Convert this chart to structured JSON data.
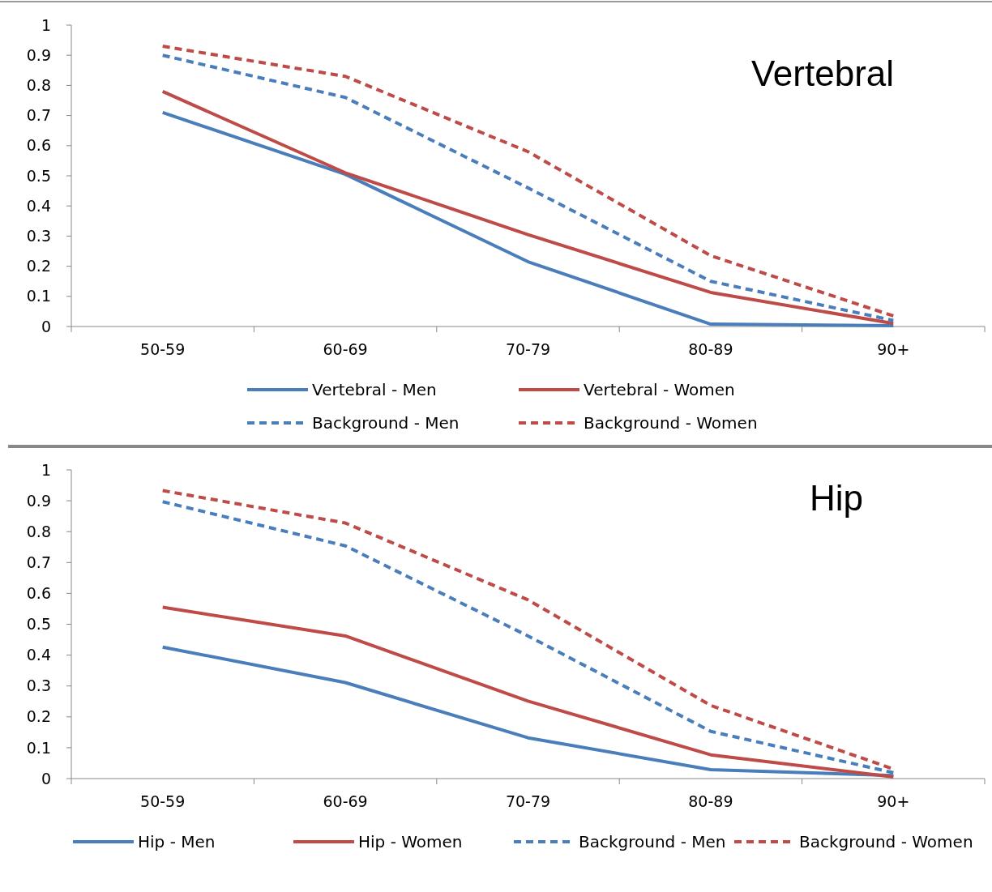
{
  "chart_data": [
    {
      "type": "line",
      "title": "Vertebral",
      "categories": [
        "50-59",
        "60-69",
        "70-79",
        "80-89",
        "90+"
      ],
      "ylim": [
        0,
        1
      ],
      "yticks": [
        0,
        0.1,
        0.2,
        0.3,
        0.4,
        0.5,
        0.6,
        0.7,
        0.8,
        0.9,
        1
      ],
      "legend": "bottom",
      "grid": false,
      "marker": "none",
      "series": [
        {
          "name": "Vertebral - Men",
          "color": "#4a7ebb",
          "line_style": "solid",
          "values": [
            0.71,
            0.505,
            0.215,
            0.008,
            0.003
          ]
        },
        {
          "name": "Vertebral - Women",
          "color": "#be4b48",
          "line_style": "solid",
          "values": [
            0.78,
            0.51,
            0.305,
            0.113,
            0.01
          ]
        },
        {
          "name": "Background - Men",
          "color": "#4a7ebb",
          "line_style": "dashed",
          "values": [
            0.9,
            0.76,
            0.46,
            0.15,
            0.02
          ]
        },
        {
          "name": "Background - Women",
          "color": "#be4b48",
          "line_style": "dashed",
          "values": [
            0.93,
            0.83,
            0.58,
            0.235,
            0.035
          ]
        }
      ]
    },
    {
      "type": "line",
      "title": "Hip",
      "categories": [
        "50-59",
        "60-69",
        "70-79",
        "80-89",
        "90+"
      ],
      "ylim": [
        0,
        1
      ],
      "yticks": [
        0,
        0.1,
        0.2,
        0.3,
        0.4,
        0.5,
        0.6,
        0.7,
        0.8,
        0.9,
        1
      ],
      "legend": "bottom",
      "grid": false,
      "marker": "none",
      "series": [
        {
          "name": "Hip - Men",
          "color": "#4a7ebb",
          "line_style": "solid",
          "values": [
            0.426,
            0.311,
            0.132,
            0.029,
            0.01
          ]
        },
        {
          "name": "Hip - Women",
          "color": "#be4b48",
          "line_style": "solid",
          "values": [
            0.555,
            0.462,
            0.251,
            0.077,
            0.005
          ]
        },
        {
          "name": "Background - Men",
          "color": "#4a7ebb",
          "line_style": "dashed",
          "values": [
            0.897,
            0.754,
            0.462,
            0.153,
            0.019
          ]
        },
        {
          "name": "Background - Women",
          "color": "#be4b48",
          "line_style": "dashed",
          "values": [
            0.933,
            0.828,
            0.579,
            0.237,
            0.031
          ]
        }
      ]
    }
  ]
}
